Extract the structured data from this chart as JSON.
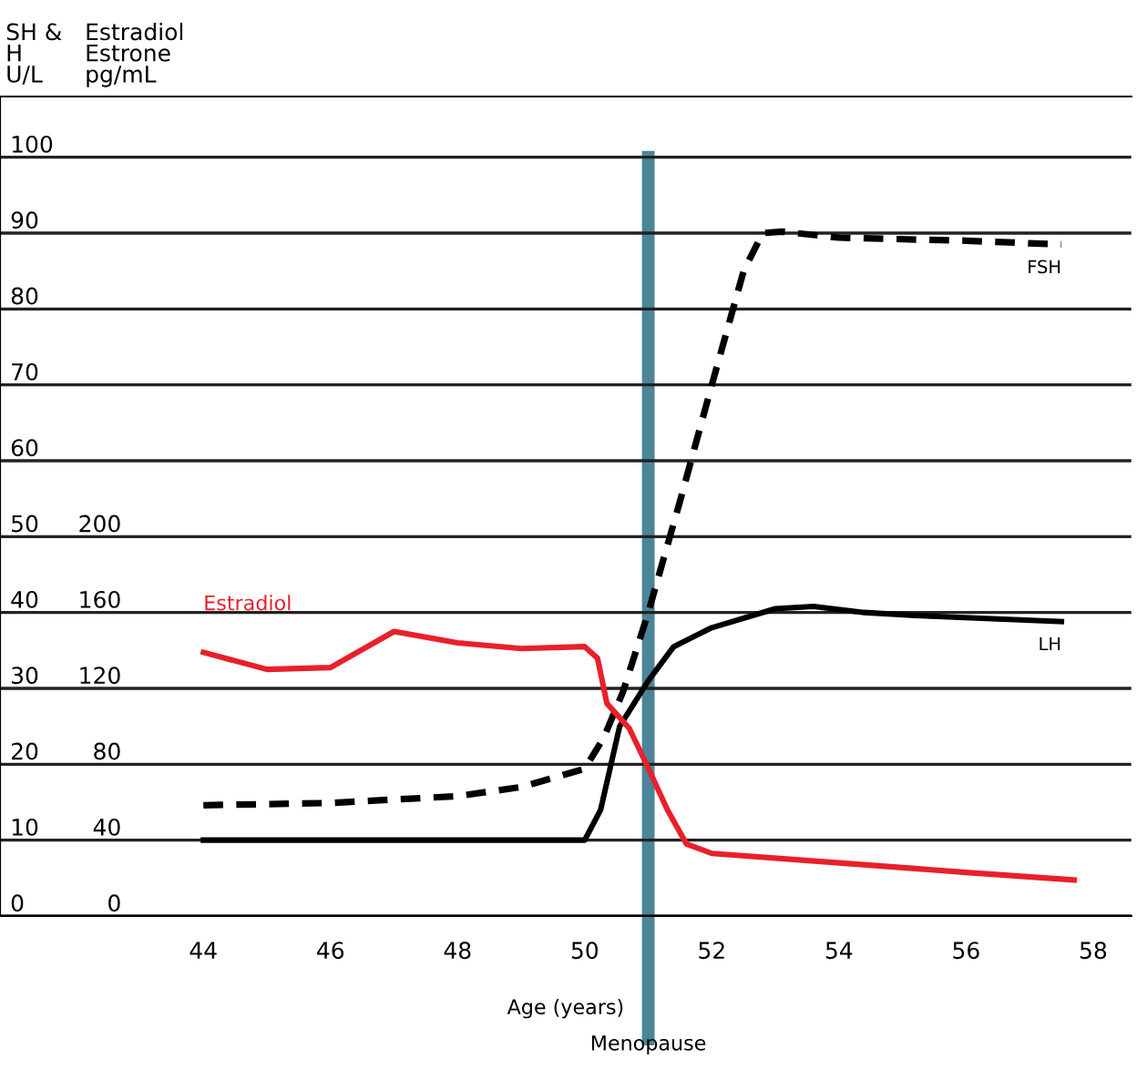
{
  "chart_data": {
    "type": "line",
    "xlabel": "Age (years)",
    "ylabel": "SH &\nH\nU/L",
    "y2label": "Estradiol\nEstrone\npg/mL",
    "xlim": [
      40.8,
      58.6
    ],
    "xticks": [
      44,
      46,
      48,
      50,
      52,
      54,
      56,
      58
    ],
    "ylim": [
      0,
      108
    ],
    "yticks": [
      0,
      10,
      20,
      30,
      40,
      50,
      60,
      70,
      80,
      90,
      100
    ],
    "y2lim": [
      0,
      432
    ],
    "y2ticks": [
      0,
      40,
      80,
      120,
      160,
      200
    ],
    "grid": "y",
    "legend": false,
    "series": [
      {
        "name": "FSH",
        "color": "#000000",
        "line_style": "dashed",
        "x": [
          44,
          46,
          48,
          49,
          50,
          50.3,
          50.6,
          51,
          51.5,
          52,
          52.5,
          52.8,
          53.1,
          54,
          56,
          57.5
        ],
        "values": [
          14.6,
          14.9,
          15.8,
          17,
          19.4,
          23.5,
          29.5,
          40,
          54.7,
          70,
          85,
          90,
          90.2,
          89.4,
          89,
          88.5
        ]
      },
      {
        "name": "LH",
        "color": "#000000",
        "line_style": "solid",
        "x": [
          44,
          46,
          48,
          50,
          50.25,
          50.55,
          51,
          51.4,
          52,
          53,
          53.6,
          54.4,
          55.2,
          57.5
        ],
        "values": [
          10,
          10,
          10,
          10,
          14,
          25,
          31,
          35.5,
          38,
          40.5,
          40.8,
          40,
          39.6,
          38.8
        ]
      },
      {
        "name": "Estradiol",
        "color": "#e8202a",
        "line_style": "solid",
        "axis": "y2",
        "x": [
          44,
          45,
          46,
          47,
          48,
          49,
          50,
          50.2,
          50.35,
          50.7,
          51,
          51.3,
          51.6,
          52,
          54,
          56,
          57.7
        ],
        "values": [
          139,
          130,
          131,
          150,
          144,
          141,
          142,
          136,
          112,
          99,
          78,
          56,
          38,
          33,
          28,
          23,
          19
        ]
      }
    ],
    "ref_lines": [
      {
        "axis": "x",
        "value": 51,
        "label": "Menopause",
        "color": "#4a8599"
      }
    ]
  }
}
